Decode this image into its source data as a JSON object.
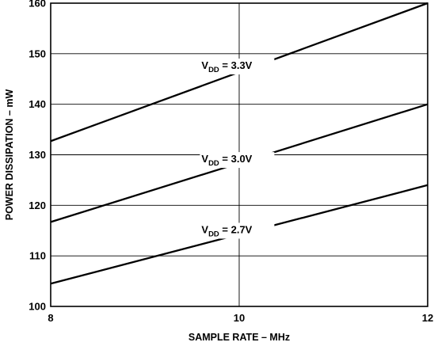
{
  "chart_data": {
    "type": "line",
    "xlabel": "SAMPLE RATE – MHz",
    "ylabel": "POWER DISSIPATION – mW",
    "xlim": [
      8,
      12
    ],
    "ylim": [
      100,
      160
    ],
    "x_ticks": [
      8,
      10,
      12
    ],
    "y_ticks": [
      100,
      110,
      120,
      130,
      140,
      150,
      160
    ],
    "grid": true,
    "series": [
      {
        "label_main": "V",
        "label_sub": "DD",
        "label_rest": " = 3.3V",
        "x": [
          8,
          12
        ],
        "y": [
          132.7,
          160.0
        ]
      },
      {
        "label_main": "V",
        "label_sub": "DD",
        "label_rest": " = 3.0V",
        "x": [
          8,
          12
        ],
        "y": [
          116.7,
          140.0
        ]
      },
      {
        "label_main": "V",
        "label_sub": "DD",
        "label_rest": " = 2.7V",
        "x": [
          8,
          12
        ],
        "y": [
          104.5,
          124.0
        ]
      }
    ],
    "annotations": [
      {
        "series": 0,
        "x": 9.6,
        "y": 147.0
      },
      {
        "series": 1,
        "x": 9.6,
        "y": 128.5
      },
      {
        "series": 2,
        "x": 9.6,
        "y": 114.5
      }
    ]
  }
}
